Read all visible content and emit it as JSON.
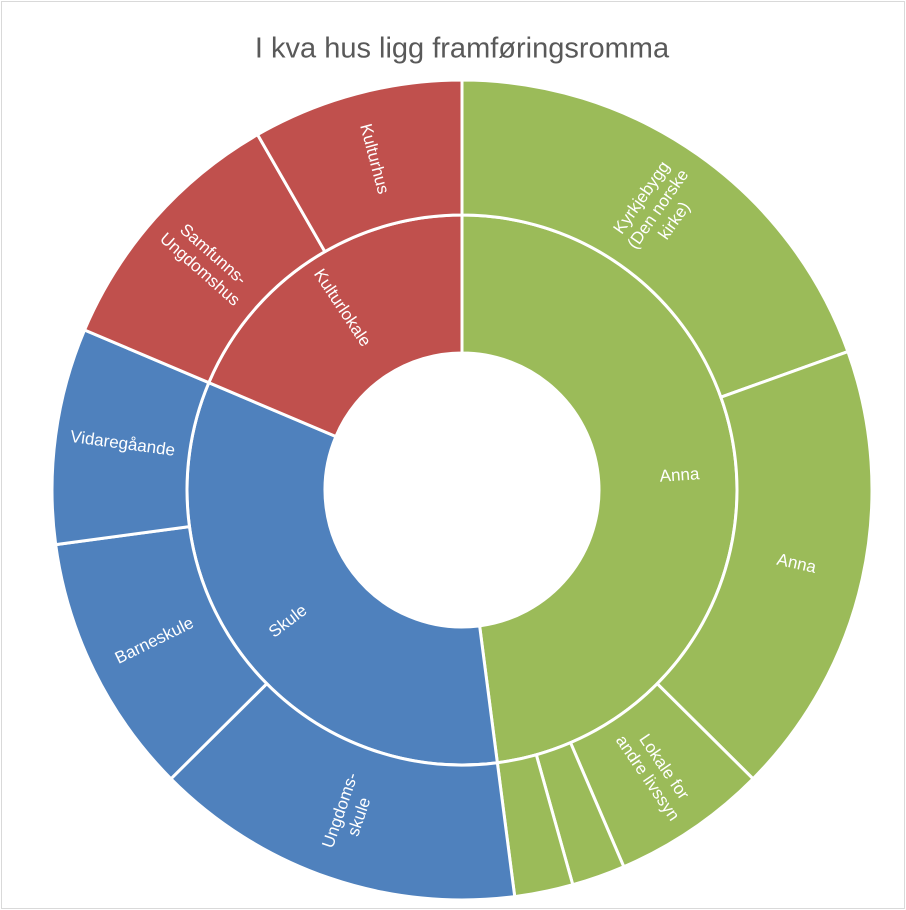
{
  "chart_data": {
    "type": "sunburst",
    "title": "I kva hus ligg framføringsromma",
    "rings": [
      {
        "name": "Anna",
        "color": "#9bbb59",
        "value": 47.9,
        "children": [
          {
            "name": "Kyrkjebygg\n(Den norske\nkirke)",
            "value": 19.5
          },
          {
            "name": "Anna",
            "value": 17.9
          },
          {
            "name": "Lokale for\nandre livssyn",
            "value": 6.1
          },
          {
            "name": null,
            "value": 2.1
          },
          {
            "name": null,
            "value": 2.3
          }
        ]
      },
      {
        "name": "Skule",
        "color": "#4f81bd",
        "value": 33.4,
        "children": [
          {
            "name": "Ungdoms-\nskule",
            "value": 14.6
          },
          {
            "name": "Barneskule",
            "value": 10.3
          },
          {
            "name": "Vidaregåande",
            "value": 8.5
          }
        ]
      },
      {
        "name": "Kulturlokale",
        "color": "#c0504d",
        "value": 18.6,
        "children": [
          {
            "name": "Samfunns-\nUngdomshus",
            "value": 10.3
          },
          {
            "name": "Kulturhus",
            "value": 8.3
          }
        ]
      }
    ]
  }
}
